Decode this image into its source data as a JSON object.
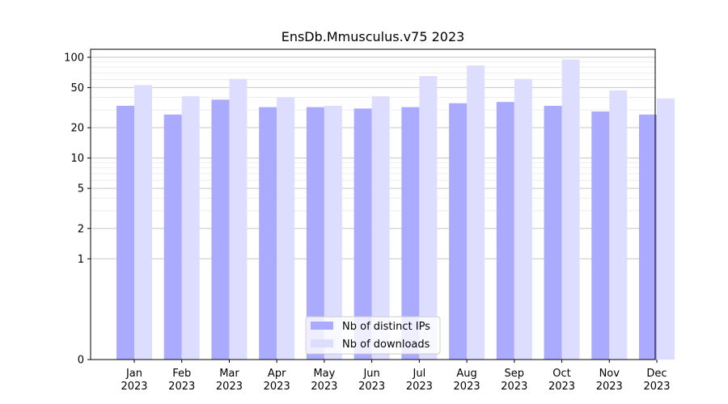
{
  "chart_data": {
    "type": "bar",
    "title": "EnsDb.Mmusculus.v75 2023",
    "xlabel": "",
    "ylabel": "",
    "y_scale": "symlog",
    "ylim": [
      0,
      120
    ],
    "y_ticks": [
      0,
      1,
      2,
      5,
      10,
      20,
      50,
      100
    ],
    "grid": "horizontal",
    "categories": [
      "Jan\n2023",
      "Feb\n2023",
      "Mar\n2023",
      "Apr\n2023",
      "May\n2023",
      "Jun\n2023",
      "Jul\n2023",
      "Aug\n2023",
      "Sep\n2023",
      "Oct\n2023",
      "Nov\n2023",
      "Dec\n2023"
    ],
    "series": [
      {
        "name": "Nb of distinct IPs",
        "color": "#aaaaff",
        "values": [
          33,
          27,
          38,
          32,
          32,
          31,
          32,
          35,
          36,
          33,
          29,
          27
        ]
      },
      {
        "name": "Nb of downloads",
        "color": "#ddddff",
        "values": [
          53,
          41,
          61,
          40,
          33,
          41,
          65,
          83,
          61,
          95,
          47,
          39
        ]
      }
    ],
    "legend_position": "bottom-center"
  }
}
